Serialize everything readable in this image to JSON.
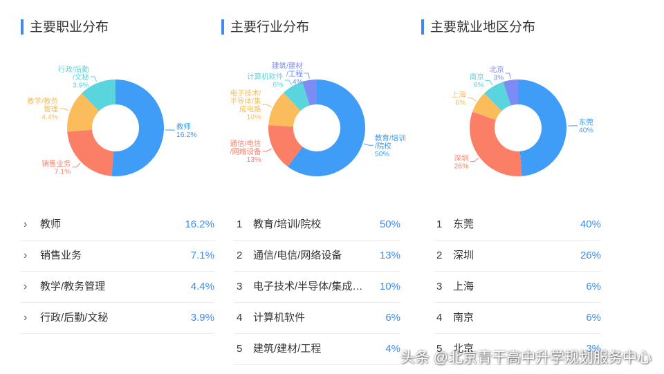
{
  "colors": {
    "accent": "#3d8bef",
    "slices": [
      "#3f9cf7",
      "#fb7e67",
      "#fbbd5b",
      "#5ad5de",
      "#7b8cf4"
    ]
  },
  "watermark": "头条 @北京青干高中升学规划服务中心",
  "panels": [
    {
      "title": "主要职业分布",
      "numbered": false,
      "list": [
        {
          "label": "教师",
          "value": "16.2%"
        },
        {
          "label": "销售业务",
          "value": "7.1%"
        },
        {
          "label": "教学/教务管理",
          "value": "4.4%"
        },
        {
          "label": "行政/后勤/文秘",
          "value": "3.9%"
        }
      ]
    },
    {
      "title": "主要行业分布",
      "numbered": true,
      "list": [
        {
          "index": "1",
          "label": "教育/培训/院校",
          "value": "50%"
        },
        {
          "index": "2",
          "label": "通信/电信/网络设备",
          "value": "13%"
        },
        {
          "index": "3",
          "label": "电子技术/半导体/集成电路",
          "value": "10%"
        },
        {
          "index": "4",
          "label": "计算机软件",
          "value": "6%"
        },
        {
          "index": "5",
          "label": "建筑/建材/工程",
          "value": "4%"
        }
      ]
    },
    {
      "title": "主要就业地区分布",
      "numbered": true,
      "list": [
        {
          "index": "1",
          "label": "东莞",
          "value": "40%"
        },
        {
          "index": "2",
          "label": "深圳",
          "value": "26%"
        },
        {
          "index": "3",
          "label": "上海",
          "value": "6%"
        },
        {
          "index": "4",
          "label": "南京",
          "value": "6%"
        },
        {
          "index": "5",
          "label": "北京",
          "value": "3%"
        }
      ]
    }
  ],
  "chart_data": [
    {
      "type": "pie",
      "title": "主要职业分布",
      "categories": [
        "教师",
        "销售业务",
        "教学/教务管理",
        "行政/后勤/文秘"
      ],
      "values": [
        16.2,
        7.1,
        4.4,
        3.9
      ],
      "labels": [
        [
          "教师",
          "16.2%"
        ],
        [
          "销售业务",
          "7.1%"
        ],
        [
          "教学/教务",
          "管理",
          "4.4%"
        ],
        [
          "行政/后勤",
          "/文秘",
          "3.9%"
        ]
      ]
    },
    {
      "type": "pie",
      "title": "主要行业分布",
      "categories": [
        "教育/培训/院校",
        "通信/电信/网络设备",
        "电子技术/半导体/集成电路",
        "计算机软件",
        "建筑/建材/工程"
      ],
      "values": [
        50,
        13,
        10,
        6,
        4
      ],
      "labels": [
        [
          "教育/培训",
          "/院校",
          "50%"
        ],
        [
          "通信/电信",
          "/网络设备",
          "13%"
        ],
        [
          "电子技术/",
          "半导体/集",
          "成电路",
          "10%"
        ],
        [
          "计算机软件",
          "6%"
        ],
        [
          "建筑/建材",
          "/工程",
          "4%"
        ]
      ]
    },
    {
      "type": "pie",
      "title": "主要就业地区分布",
      "categories": [
        "东莞",
        "深圳",
        "上海",
        "南京",
        "北京"
      ],
      "values": [
        40,
        26,
        6,
        6,
        3
      ],
      "labels": [
        [
          "东莞",
          "40%"
        ],
        [
          "深圳",
          "26%"
        ],
        [
          "上海",
          "6%"
        ],
        [
          "南京",
          "6%"
        ],
        [
          "北京",
          "3%"
        ]
      ]
    }
  ]
}
